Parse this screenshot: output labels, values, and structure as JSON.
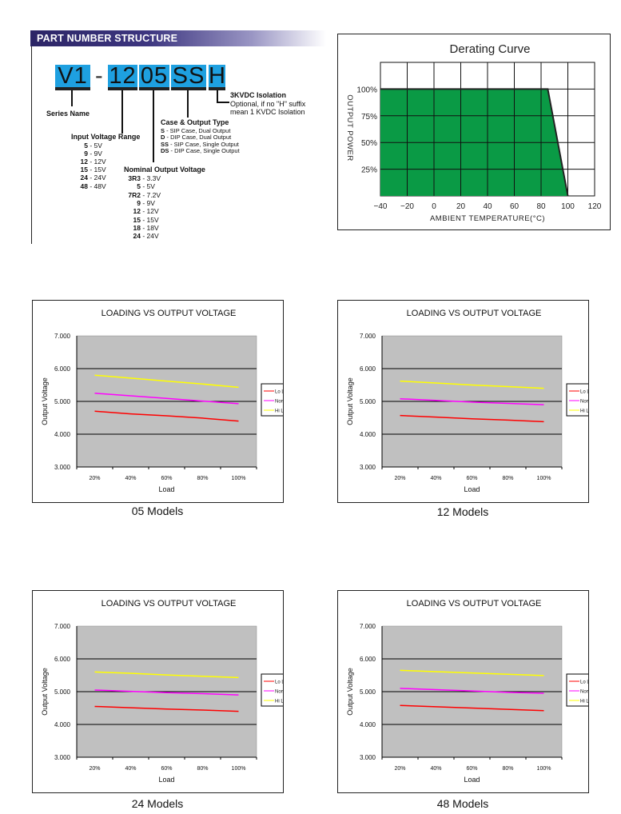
{
  "part_number": {
    "header": "PART NUMBER STRUCTURE",
    "segments": [
      "V1",
      "-",
      "12",
      "05",
      "SS",
      "H"
    ],
    "series_name_label": "Series Name",
    "input_voltage": {
      "title": "Input Voltage Range",
      "items": [
        {
          "code": "5",
          "value": "5V"
        },
        {
          "code": "9",
          "value": "9V"
        },
        {
          "code": "12",
          "value": "12V"
        },
        {
          "code": "15",
          "value": "15V"
        },
        {
          "code": "24",
          "value": "24V"
        },
        {
          "code": "48",
          "value": "48V"
        }
      ]
    },
    "nominal_output": {
      "title": "Nominal Output Voltage",
      "items": [
        {
          "code": "3R3",
          "value": "3.3V"
        },
        {
          "code": "5",
          "value": "5V"
        },
        {
          "code": "7R2",
          "value": "7.2V"
        },
        {
          "code": "9",
          "value": "9V"
        },
        {
          "code": "12",
          "value": "12V"
        },
        {
          "code": "15",
          "value": "15V"
        },
        {
          "code": "18",
          "value": "18V"
        },
        {
          "code": "24",
          "value": "24V"
        }
      ]
    },
    "case_type": {
      "title": "Case & Output Type",
      "items": [
        {
          "code": "S",
          "value": "SIP Case, Dual Output"
        },
        {
          "code": "D",
          "value": "DIP Case, Dual Output"
        },
        {
          "code": "SS",
          "value": "SIP Case, Single Output"
        },
        {
          "code": "DS",
          "value": "DIP Case, Single Output"
        }
      ]
    },
    "isolation": {
      "title": "3KVDC Isolation",
      "line1": "Optional,  if no \"H\" suffix",
      "line2": "mean 1 KVDC Isolation"
    },
    "colors": {
      "segment": "#1ea0e0",
      "header": "#2c2566"
    }
  },
  "chart_data": [
    {
      "type": "area",
      "title": "Derating Curve",
      "xlabel": "AMBIENT TEMPERATURE(°C)",
      "ylabel": "OUTPUT POWER",
      "x": [
        -40,
        85,
        100
      ],
      "y": [
        100,
        100,
        0
      ],
      "xlim": [
        -40,
        120
      ],
      "ylim": [
        0,
        125
      ],
      "xticks": [
        "-40",
        "-20",
        "0",
        "20",
        "40",
        "60",
        "80",
        "100",
        "120"
      ],
      "yticks": [
        "25%",
        "50%",
        "75%",
        "100%"
      ],
      "grid": true,
      "fill_color": "#0a9a45"
    },
    {
      "type": "line",
      "caption": "05 Models",
      "title": "LOADING VS OUTPUT VOLTAGE",
      "xlabel": "Load",
      "ylabel": "Output Voltage",
      "categories": [
        "20%",
        "40%",
        "60%",
        "80%",
        "100%"
      ],
      "yticks": [
        "3.000",
        "4.000",
        "5.000",
        "6.000",
        "7.000"
      ],
      "ylim": [
        3,
        7
      ],
      "legend": "right",
      "series": [
        {
          "name": "Lo Line/In",
          "color": "#ff0000",
          "values": [
            4.7,
            4.62,
            4.56,
            4.49,
            4.4
          ]
        },
        {
          "name": "Nominal/In",
          "color": "#ff00ff",
          "values": [
            5.25,
            5.17,
            5.09,
            5.01,
            4.93
          ]
        },
        {
          "name": "Hi Line/In",
          "color": "#ffff00",
          "values": [
            5.8,
            5.71,
            5.62,
            5.53,
            5.43
          ]
        }
      ]
    },
    {
      "type": "line",
      "caption": "12 Models",
      "title": "LOADING VS OUTPUT VOLTAGE",
      "xlabel": "Load",
      "ylabel": "Output Voltage",
      "categories": [
        "20%",
        "40%",
        "60%",
        "80%",
        "100%"
      ],
      "yticks": [
        "3.000",
        "4.000",
        "5.000",
        "6.000",
        "7.000"
      ],
      "ylim": [
        3,
        7
      ],
      "legend": "right",
      "series": [
        {
          "name": "Lo Line/In",
          "color": "#ff0000",
          "values": [
            4.57,
            4.52,
            4.47,
            4.43,
            4.38
          ]
        },
        {
          "name": "Nominal/In",
          "color": "#ff00ff",
          "values": [
            5.08,
            5.03,
            4.98,
            4.94,
            4.9
          ]
        },
        {
          "name": "Hi Line/In",
          "color": "#ffff00",
          "values": [
            5.62,
            5.56,
            5.5,
            5.45,
            5.4
          ]
        }
      ]
    },
    {
      "type": "line",
      "caption": "24 Models",
      "title": "LOADING VS OUTPUT VOLTAGE",
      "xlabel": "Load",
      "ylabel": "Output Voltage",
      "categories": [
        "20%",
        "40%",
        "60%",
        "80%",
        "100%"
      ],
      "yticks": [
        "3.000",
        "4.000",
        "5.000",
        "6.000",
        "7.000"
      ],
      "ylim": [
        3,
        7
      ],
      "legend": "right",
      "series": [
        {
          "name": "Lo Line/In",
          "color": "#ff0000",
          "values": [
            4.55,
            4.51,
            4.47,
            4.44,
            4.4
          ]
        },
        {
          "name": "Nominal/In",
          "color": "#ff00ff",
          "values": [
            5.05,
            5.01,
            4.97,
            4.94,
            4.9
          ]
        },
        {
          "name": "Hi Line/In",
          "color": "#ffff00",
          "values": [
            5.6,
            5.56,
            5.51,
            5.47,
            5.43
          ]
        }
      ]
    },
    {
      "type": "line",
      "caption": "48 Models",
      "title": "LOADING VS OUTPUT VOLTAGE",
      "xlabel": "Load",
      "ylabel": "Output Voltage",
      "categories": [
        "20%",
        "40%",
        "60%",
        "80%",
        "100%"
      ],
      "yticks": [
        "3.000",
        "4.000",
        "5.000",
        "6.000",
        "7.000"
      ],
      "ylim": [
        3,
        7
      ],
      "legend": "right",
      "series": [
        {
          "name": "Lo Line/In",
          "color": "#ff0000",
          "values": [
            4.58,
            4.54,
            4.5,
            4.46,
            4.42
          ]
        },
        {
          "name": "Nominal/In",
          "color": "#ff00ff",
          "values": [
            5.1,
            5.06,
            5.02,
            4.98,
            4.95
          ]
        },
        {
          "name": "Hi Line/In",
          "color": "#ffff00",
          "values": [
            5.65,
            5.61,
            5.57,
            5.53,
            5.49
          ]
        }
      ]
    }
  ]
}
